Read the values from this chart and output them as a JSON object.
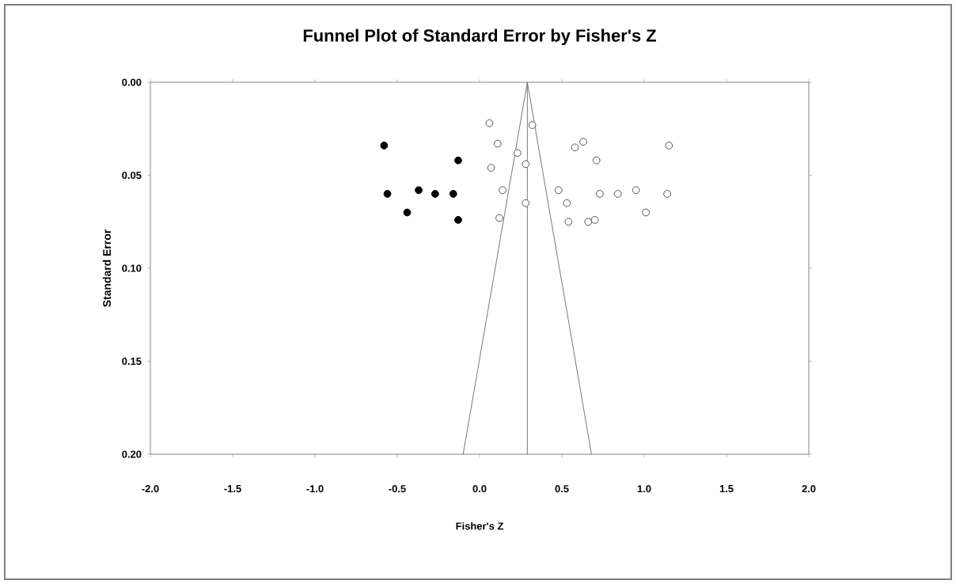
{
  "chart_data": {
    "type": "scatter",
    "title": "Funnel Plot of Standard Error by Fisher's Z",
    "xlabel": "Fisher's Z",
    "ylabel": "Standard Error",
    "xlim": [
      -2.0,
      2.0
    ],
    "ylim": [
      0.2,
      0.0
    ],
    "xticks": [
      {
        "value": -2.0,
        "label": "-2.0"
      },
      {
        "value": -1.5,
        "label": "-1.5"
      },
      {
        "value": -1.0,
        "label": "-1.0"
      },
      {
        "value": -0.5,
        "label": "-0.5"
      },
      {
        "value": 0.0,
        "label": "0.0"
      },
      {
        "value": 0.5,
        "label": "0.5"
      },
      {
        "value": 1.0,
        "label": "1.0"
      },
      {
        "value": 1.5,
        "label": "1.5"
      },
      {
        "value": 2.0,
        "label": "2.0"
      }
    ],
    "yticks": [
      {
        "value": 0.0,
        "label": "0.00"
      },
      {
        "value": 0.05,
        "label": "0.05"
      },
      {
        "value": 0.1,
        "label": "0.10"
      },
      {
        "value": 0.15,
        "label": "0.15"
      },
      {
        "value": 0.2,
        "label": "0.20"
      }
    ],
    "grid": false,
    "ref_lines": [
      {
        "axis": "x",
        "value": 0.29,
        "color": "#555555"
      }
    ],
    "series": [
      {
        "color": "#000000",
        "marker": "circle",
        "x": [
          -0.58,
          -0.13,
          -0.56,
          -0.37,
          -0.27,
          -0.16,
          -0.44,
          -0.13
        ],
        "values": [
          0.034,
          0.042,
          0.06,
          0.058,
          0.06,
          0.06,
          0.07,
          0.074
        ]
      },
      {
        "color": "#555555",
        "marker": "open circle",
        "x": [
          0.06,
          0.32,
          0.11,
          0.23,
          0.07,
          0.28,
          0.14,
          0.28,
          0.12,
          0.58,
          0.63,
          0.71,
          1.15,
          0.48,
          0.53,
          0.73,
          0.84,
          0.95,
          1.14,
          0.54,
          0.66,
          0.7,
          1.01
        ],
        "values": [
          0.022,
          0.023,
          0.033,
          0.038,
          0.046,
          0.044,
          0.058,
          0.065,
          0.073,
          0.035,
          0.032,
          0.042,
          0.034,
          0.058,
          0.065,
          0.06,
          0.06,
          0.058,
          0.06,
          0.075,
          0.075,
          0.074,
          0.07
        ]
      },
      {
        "type": "line",
        "color": "#777777",
        "line_style": "solid",
        "x": [
          0.29,
          -0.1
        ],
        "values": [
          0.0,
          0.2
        ]
      },
      {
        "type": "line",
        "color": "#777777",
        "line_style": "solid",
        "x": [
          0.29,
          0.68
        ],
        "values": [
          0.0,
          0.2
        ]
      }
    ]
  }
}
